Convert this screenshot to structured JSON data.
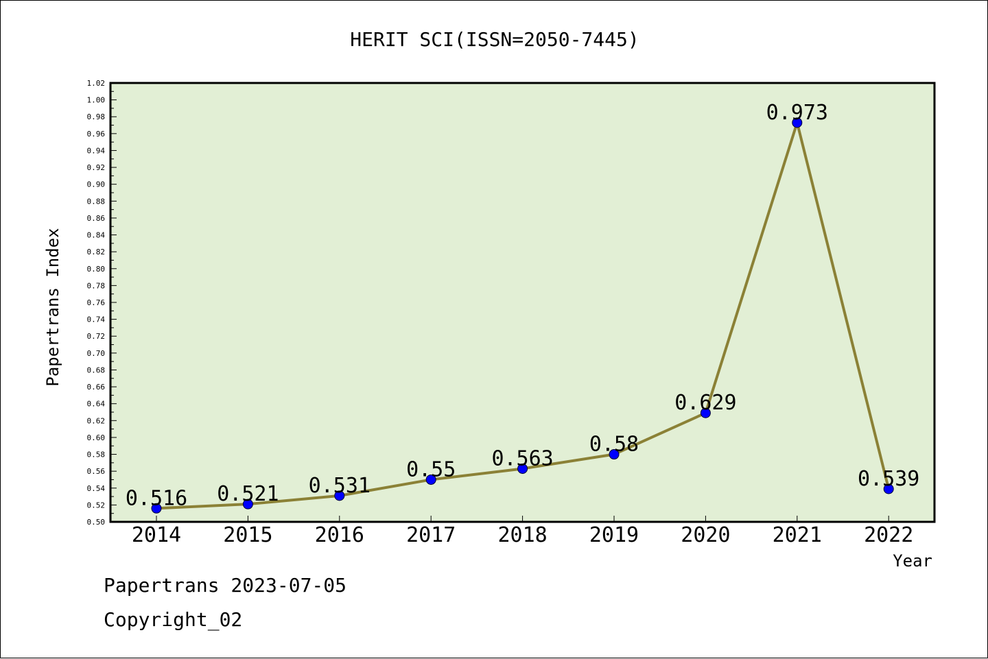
{
  "chart_data": {
    "type": "line",
    "title": "HERIT SCI(ISSN=2050-7445)",
    "xlabel": "Year",
    "ylabel": "Papertrans Index",
    "categories": [
      "2014",
      "2015",
      "2016",
      "2017",
      "2018",
      "2019",
      "2020",
      "2021",
      "2022"
    ],
    "series": [
      {
        "values": [
          0.516,
          0.521,
          0.531,
          0.55,
          0.563,
          0.58,
          0.629,
          0.973,
          0.539
        ],
        "data_labels": [
          "0.516",
          "0.521",
          "0.531",
          "0.55",
          "0.563",
          "0.58",
          "0.629",
          "0.973",
          "0.539"
        ]
      }
    ],
    "ylim": [
      0.5,
      1.02
    ],
    "y_ticks": [
      "0.50",
      "0.52",
      "0.54",
      "0.56",
      "0.58",
      "0.60",
      "0.62",
      "0.64",
      "0.66",
      "0.68",
      "0.70",
      "0.72",
      "0.74",
      "0.76",
      "0.78",
      "0.80",
      "0.82",
      "0.84",
      "0.86",
      "0.88",
      "0.90",
      "0.92",
      "0.94",
      "0.96",
      "0.98",
      "1.00",
      "1.02"
    ],
    "grid": false,
    "colors": {
      "plot_background": "#e2efd5",
      "line": "#8b8136",
      "marker": "#0000ff"
    }
  },
  "footer": {
    "date_text": "Papertrans 2023-07-05",
    "copyright_text": "Copyright_02"
  }
}
